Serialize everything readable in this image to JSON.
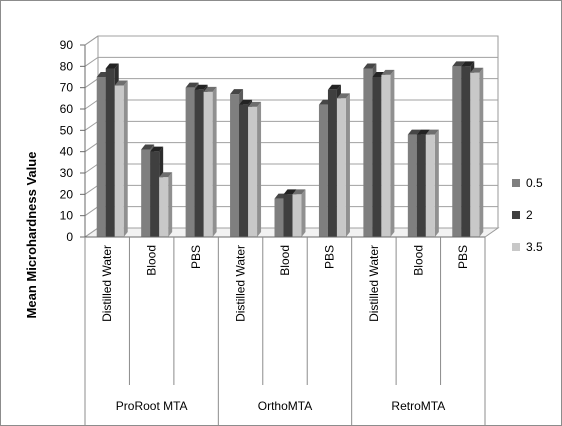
{
  "chart_data": {
    "type": "bar",
    "title": "",
    "xlabel": "",
    "ylabel": "Mean Microhardness Value",
    "ylim": [
      0,
      90
    ],
    "yticks": [
      0,
      10,
      20,
      30,
      40,
      50,
      60,
      70,
      80,
      90
    ],
    "grid": true,
    "legend_position": "right",
    "groups": [
      "ProRoot MTA",
      "OrthoMTA",
      "RetroMTA"
    ],
    "categories": [
      "Distilled Water",
      "Blood",
      "PBS",
      "Distilled Water",
      "Blood",
      "PBS",
      "Distilled Water",
      "Blood",
      "PBS"
    ],
    "series": [
      {
        "name": "0.5",
        "color": "#7f7f7f",
        "values": [
          75,
          41,
          70,
          67,
          18,
          62,
          79,
          48,
          80
        ]
      },
      {
        "name": "2",
        "color": "#3f3f3f",
        "values": [
          79,
          40,
          69,
          62,
          20,
          69,
          75,
          48,
          80
        ]
      },
      {
        "name": "3.5",
        "color": "#c8c8c8",
        "values": [
          71,
          28,
          68,
          61,
          20,
          65,
          76,
          48,
          77
        ]
      }
    ]
  }
}
